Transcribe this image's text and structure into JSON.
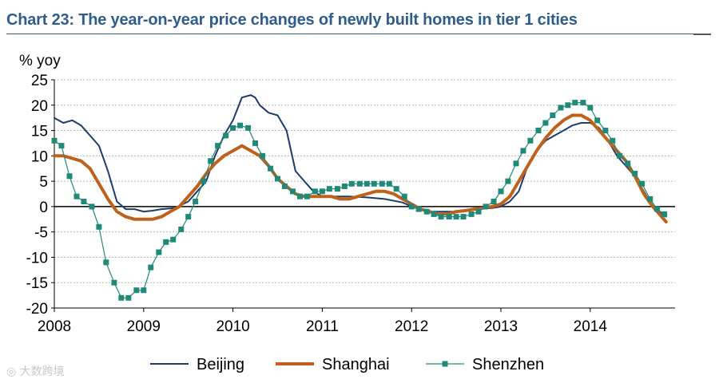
{
  "title": "Chart 23: The year-on-year price changes of newly built homes in tier 1 cities",
  "watermark": "大数跨境",
  "chart_data": {
    "type": "line",
    "ylabel": "% yoy",
    "xlabel": "",
    "ylim": [
      -20,
      25
    ],
    "yticks": [
      25,
      20,
      15,
      10,
      5,
      0,
      -5,
      -10,
      -15,
      -20
    ],
    "xlim": [
      2008,
      2014.95
    ],
    "xticks": [
      2008,
      2009,
      2010,
      2011,
      2012,
      2013,
      2014
    ],
    "xtick_labels": [
      "2008",
      "2009",
      "2010",
      "2011",
      "2012",
      "2013",
      "2014"
    ],
    "grid": "horizontal-dashed",
    "legend_position": "bottom",
    "series": [
      {
        "name": "Beijing",
        "color": "#1f3b6b",
        "style": "line",
        "x": [
          2008.0,
          2008.1,
          2008.2,
          2008.3,
          2008.4,
          2008.5,
          2008.6,
          2008.7,
          2008.8,
          2008.9,
          2009.0,
          2009.1,
          2009.2,
          2009.35,
          2009.5,
          2009.6,
          2009.7,
          2009.8,
          2009.9,
          2010.0,
          2010.1,
          2010.2,
          2010.25,
          2010.3,
          2010.4,
          2010.5,
          2010.6,
          2010.7,
          2010.8,
          2010.9,
          2011.0,
          2011.1,
          2011.2,
          2011.3,
          2011.5,
          2011.7,
          2011.9,
          2012.0,
          2012.1,
          2012.2,
          2012.3,
          2012.5,
          2012.7,
          2012.9,
          2013.0,
          2013.1,
          2013.2,
          2013.3,
          2013.4,
          2013.5,
          2013.6,
          2013.7,
          2013.8,
          2013.9,
          2014.0,
          2014.1,
          2014.2,
          2014.3,
          2014.4,
          2014.5,
          2014.6,
          2014.7,
          2014.8,
          2014.85
        ],
        "values": [
          17.5,
          16.5,
          17,
          16,
          14,
          12,
          7,
          1,
          -0.5,
          -0.5,
          -1,
          -0.8,
          -0.5,
          -0.3,
          1,
          3,
          5,
          10,
          14,
          17,
          21.5,
          22,
          21.5,
          20,
          18.5,
          18,
          15,
          7,
          5,
          3,
          2,
          2,
          2,
          2,
          1.8,
          1.5,
          0.8,
          0,
          -0.5,
          -1,
          -1,
          -1,
          -0.5,
          -0.3,
          0,
          1,
          3,
          8,
          11,
          13,
          14,
          15,
          16,
          16.5,
          16.5,
          15.5,
          13,
          10,
          8,
          6,
          3,
          0,
          -1.5,
          -2
        ]
      },
      {
        "name": "Shanghai",
        "color": "#c0611b",
        "style": "thick-line",
        "x": [
          2008.0,
          2008.1,
          2008.2,
          2008.3,
          2008.4,
          2008.5,
          2008.6,
          2008.7,
          2008.8,
          2008.9,
          2009.0,
          2009.1,
          2009.2,
          2009.3,
          2009.4,
          2009.5,
          2009.6,
          2009.7,
          2009.8,
          2009.9,
          2010.0,
          2010.1,
          2010.2,
          2010.3,
          2010.4,
          2010.5,
          2010.6,
          2010.7,
          2010.8,
          2010.9,
          2011.0,
          2011.1,
          2011.2,
          2011.3,
          2011.4,
          2011.5,
          2011.6,
          2011.7,
          2011.8,
          2011.9,
          2012.0,
          2012.1,
          2012.2,
          2012.3,
          2012.4,
          2012.5,
          2012.6,
          2012.7,
          2012.8,
          2012.9,
          2013.0,
          2013.1,
          2013.2,
          2013.3,
          2013.4,
          2013.5,
          2013.6,
          2013.7,
          2013.8,
          2013.9,
          2014.0,
          2014.1,
          2014.2,
          2014.3,
          2014.4,
          2014.5,
          2014.6,
          2014.7,
          2014.8,
          2014.85
        ],
        "values": [
          10,
          10,
          9.5,
          9,
          7.5,
          4.5,
          1.5,
          -1,
          -2,
          -2.5,
          -2.5,
          -2.5,
          -2,
          -1,
          0,
          2,
          4,
          6.5,
          8.5,
          10,
          11,
          12,
          11,
          10,
          8,
          5.5,
          4,
          2.5,
          2,
          2,
          2,
          2,
          1.5,
          1.5,
          2,
          2.5,
          3,
          3,
          2.5,
          1.5,
          0.5,
          -0.5,
          -1,
          -1.5,
          -1.5,
          -1,
          -0.8,
          -0.5,
          -0.3,
          0,
          0.5,
          2,
          5,
          8,
          11,
          13.5,
          15.5,
          17,
          18,
          18,
          17,
          15,
          13,
          11,
          9,
          6,
          2.5,
          0,
          -2,
          -3
        ]
      },
      {
        "name": "Shenzhen",
        "color": "#1f8a77",
        "style": "line-square-markers",
        "x": [
          2008.0,
          2008.08,
          2008.17,
          2008.25,
          2008.33,
          2008.42,
          2008.5,
          2008.58,
          2008.67,
          2008.75,
          2008.83,
          2008.92,
          2009.0,
          2009.08,
          2009.17,
          2009.25,
          2009.33,
          2009.42,
          2009.5,
          2009.58,
          2009.67,
          2009.75,
          2009.83,
          2009.92,
          2010.0,
          2010.08,
          2010.17,
          2010.25,
          2010.33,
          2010.42,
          2010.5,
          2010.58,
          2010.67,
          2010.75,
          2010.83,
          2010.92,
          2011.0,
          2011.08,
          2011.17,
          2011.25,
          2011.33,
          2011.42,
          2011.5,
          2011.58,
          2011.67,
          2011.75,
          2011.83,
          2011.92,
          2012.0,
          2012.08,
          2012.17,
          2012.25,
          2012.33,
          2012.42,
          2012.5,
          2012.58,
          2012.67,
          2012.75,
          2012.83,
          2012.92,
          2013.0,
          2013.08,
          2013.17,
          2013.25,
          2013.33,
          2013.42,
          2013.5,
          2013.58,
          2013.67,
          2013.75,
          2013.83,
          2013.92,
          2014.0,
          2014.08,
          2014.17,
          2014.25,
          2014.33,
          2014.42,
          2014.5,
          2014.58,
          2014.67,
          2014.75,
          2014.83
        ],
        "values": [
          13,
          12,
          6,
          2,
          1,
          0,
          -4,
          -11,
          -15,
          -18,
          -18,
          -16.5,
          -16.5,
          -12,
          -9,
          -7,
          -6.5,
          -4.5,
          -2,
          1,
          5,
          9,
          12,
          14,
          15.5,
          16,
          15.5,
          12.5,
          10,
          7.5,
          5.5,
          4,
          3,
          2,
          2,
          3,
          3,
          3.5,
          3.5,
          4,
          4.5,
          4.5,
          4.5,
          4.5,
          4.5,
          4.5,
          3.5,
          2,
          0,
          -0.5,
          -1,
          -1.5,
          -2,
          -2,
          -2,
          -2,
          -1.5,
          -1,
          0,
          1,
          3,
          5,
          8.5,
          11,
          13,
          15,
          16.5,
          18,
          19.5,
          20,
          20.5,
          20.5,
          19.5,
          17,
          15,
          13,
          10,
          8.5,
          6.5,
          4.5,
          1.5,
          -0.5,
          -1.5
        ]
      }
    ]
  }
}
